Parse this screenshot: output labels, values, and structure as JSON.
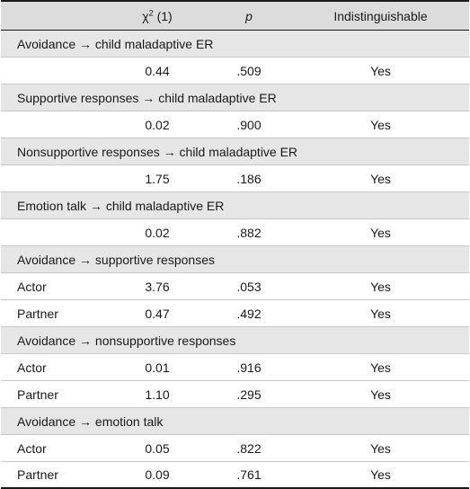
{
  "header": {
    "col1": "",
    "chi_symbol": "χ",
    "chi_sup": "2",
    "chi_df": "(1)",
    "p": "p",
    "indistinguishable": "Indistinguishable"
  },
  "sections": [
    {
      "title": "Avoidance → child maladaptive ER",
      "rows": [
        {
          "label": "",
          "chi2": "0.44",
          "p": ".509",
          "result": "Yes"
        }
      ]
    },
    {
      "title": "Supportive responses → child maladaptive ER",
      "rows": [
        {
          "label": "",
          "chi2": "0.02",
          "p": ".900",
          "result": "Yes"
        }
      ]
    },
    {
      "title": "Nonsupportive responses → child maladaptive ER",
      "rows": [
        {
          "label": "",
          "chi2": "1.75",
          "p": ".186",
          "result": "Yes"
        }
      ]
    },
    {
      "title": "Emotion talk → child maladaptive ER",
      "rows": [
        {
          "label": "",
          "chi2": "0.02",
          "p": ".882",
          "result": "Yes"
        }
      ]
    },
    {
      "title": "Avoidance → supportive responses",
      "rows": [
        {
          "label": "Actor",
          "chi2": "3.76",
          "p": ".053",
          "result": "Yes"
        },
        {
          "label": "Partner",
          "chi2": "0.47",
          "p": ".492",
          "result": "Yes"
        }
      ]
    },
    {
      "title": "Avoidance → nonsupportive responses",
      "rows": [
        {
          "label": "Actor",
          "chi2": "0.01",
          "p": ".916",
          "result": "Yes"
        },
        {
          "label": "Partner",
          "chi2": "1.10",
          "p": ".295",
          "result": "Yes"
        }
      ]
    },
    {
      "title": "Avoidance → emotion talk",
      "rows": [
        {
          "label": "Actor",
          "chi2": "0.05",
          "p": ".822",
          "result": "Yes"
        },
        {
          "label": "Partner",
          "chi2": "0.09",
          "p": ".761",
          "result": "Yes"
        }
      ]
    }
  ]
}
